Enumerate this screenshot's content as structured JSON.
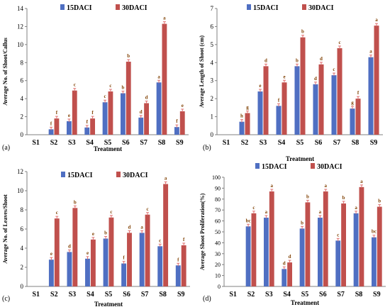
{
  "colors": {
    "s15": "#4F6FC2",
    "s30": "#C0504D",
    "text": "#000000",
    "axis": "#808080",
    "letters": "#7F3F00"
  },
  "chart_data": [
    {
      "panel_label": "(a)",
      "type": "bar",
      "xlabel": "Treatment",
      "ylabel": "Average No. of Shoot/Callus",
      "categories": [
        "S1",
        "S2",
        "S3",
        "S4",
        "S5",
        "S6",
        "S7",
        "S8",
        "S9"
      ],
      "ylim": [
        0,
        14
      ],
      "yticks": [
        "0",
        "2",
        "4",
        "6",
        "8",
        "10",
        "12",
        "14"
      ],
      "grid": false,
      "legend": "top",
      "series": [
        {
          "name": "15DACI",
          "values": [
            0,
            0.6,
            1.5,
            0.8,
            3.6,
            4.6,
            1.9,
            5.8,
            0.85
          ],
          "letters": [
            "",
            "f",
            "e",
            "f",
            "c",
            "b",
            "d",
            "a",
            "f"
          ]
        },
        {
          "name": "30DACI",
          "values": [
            0,
            1.8,
            4.9,
            1.8,
            4.8,
            8.1,
            3.5,
            12.3,
            2.6
          ],
          "letters": [
            "",
            "f",
            "c",
            "f",
            "c",
            "b",
            "d",
            "a",
            "e"
          ]
        }
      ]
    },
    {
      "panel_label": "(b)",
      "type": "bar",
      "xlabel": "Treatment",
      "ylabel": "Average Length of Shoot (cm)",
      "categories": [
        "S1",
        "S2",
        "S3",
        "S4",
        "S5",
        "S6",
        "S7",
        "S8",
        "S9"
      ],
      "ylim": [
        0,
        7
      ],
      "yticks": [
        "0",
        "1",
        "2",
        "3",
        "4",
        "5",
        "6",
        "7"
      ],
      "grid": false,
      "legend": "top",
      "series": [
        {
          "name": "15DACI",
          "values": [
            0,
            0.72,
            2.4,
            1.6,
            3.8,
            2.8,
            3.3,
            1.45,
            4.3
          ],
          "letters": [
            "",
            "h",
            "e",
            "f",
            "b",
            "d",
            "c",
            "g",
            "a"
          ]
        },
        {
          "name": "30DACI",
          "values": [
            0,
            1.2,
            3.8,
            2.9,
            5.4,
            3.9,
            4.8,
            2.0,
            6.05
          ],
          "letters": [
            "",
            "g",
            "d",
            "e",
            "b",
            "d",
            "c",
            "f",
            "a"
          ]
        }
      ]
    },
    {
      "panel_label": "(c)",
      "type": "bar",
      "xlabel": "Treatment",
      "ylabel": "Average No. of Leaves/Shoot",
      "categories": [
        "S1",
        "S2",
        "S3",
        "S4",
        "S5",
        "S6",
        "S7",
        "S8",
        "S9"
      ],
      "ylim": [
        0,
        12
      ],
      "yticks": [
        "0",
        "2",
        "4",
        "6",
        "8",
        "10",
        "12"
      ],
      "grid": false,
      "legend": "top",
      "series": [
        {
          "name": "15DACI",
          "values": [
            0,
            2.8,
            3.6,
            2.9,
            5.0,
            2.4,
            5.6,
            4.2,
            2.2
          ],
          "letters": [
            "",
            "e",
            "d",
            "e",
            "b",
            "f",
            "a",
            "c",
            "f"
          ]
        },
        {
          "name": "30DACI",
          "values": [
            0,
            7.1,
            8.2,
            4.9,
            7.2,
            5.6,
            7.5,
            10.7,
            4.3
          ],
          "letters": [
            "",
            "c",
            "b",
            "e",
            "c",
            "d",
            "c",
            "a",
            "f"
          ]
        }
      ]
    },
    {
      "panel_label": "(d)",
      "type": "bar",
      "xlabel": "Treatment",
      "ylabel": "Average Shoot Proliferation(%)",
      "categories": [
        "S1",
        "S2",
        "S3",
        "S4",
        "S5",
        "S6",
        "S7",
        "S8",
        "S9"
      ],
      "ylim": [
        0,
        100
      ],
      "yticks": [
        "0",
        "10",
        "20",
        "30",
        "40",
        "50",
        "60",
        "70",
        "80",
        "90",
        "100"
      ],
      "grid": false,
      "legend": "top",
      "series": [
        {
          "name": "15DACI",
          "values": [
            0,
            55,
            63,
            16,
            53,
            63,
            42,
            67,
            45
          ],
          "letters": [
            "",
            "bc",
            "a",
            "d",
            "b",
            "a",
            "c",
            "a",
            "bc"
          ]
        },
        {
          "name": "30DACI",
          "values": [
            0,
            67,
            87,
            22,
            77,
            87,
            76,
            91,
            73
          ],
          "letters": [
            "",
            "c",
            "a",
            "d",
            "b",
            "a",
            "b",
            "a",
            "b"
          ]
        }
      ]
    }
  ]
}
